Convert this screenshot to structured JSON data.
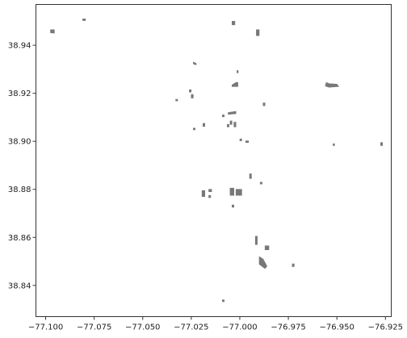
{
  "chart_data": {
    "type": "map",
    "title": "",
    "xlabel": "",
    "ylabel": "",
    "xlim": [
      -77.105,
      -76.922
    ],
    "ylim": [
      38.827,
      38.957
    ],
    "x_ticks": [
      -77.1,
      -77.075,
      -77.05,
      -77.025,
      -77.0,
      -76.975,
      -76.95,
      -76.925
    ],
    "x_tick_labels": [
      "−77.100",
      "−77.075",
      "−77.050",
      "−77.025",
      "−77.000",
      "−76.975",
      "−76.950",
      "−76.925"
    ],
    "y_ticks": [
      38.84,
      38.86,
      38.88,
      38.9,
      38.92,
      38.94
    ],
    "y_tick_labels": [
      "38.84",
      "38.86",
      "38.88",
      "38.90",
      "38.92",
      "38.94"
    ],
    "grid": false,
    "fill_color": "#787878",
    "frame_color": "#333333",
    "polygons": [
      [
        [
          -77.0975,
          38.9465
        ],
        [
          -77.0955,
          38.9465
        ],
        [
          -77.0955,
          38.945
        ],
        [
          -77.0975,
          38.9452
        ]
      ],
      [
        [
          -77.081,
          38.951
        ],
        [
          -77.0795,
          38.951
        ],
        [
          -77.0795,
          38.9502
        ],
        [
          -77.081,
          38.9503
        ]
      ],
      [
        [
          -77.004,
          38.95
        ],
        [
          -77.0025,
          38.95
        ],
        [
          -77.0025,
          38.9485
        ],
        [
          -77.004,
          38.9485
        ]
      ],
      [
        [
          -76.9915,
          38.9465
        ],
        [
          -76.99,
          38.9465
        ],
        [
          -76.99,
          38.944
        ],
        [
          -76.9915,
          38.944
        ]
      ],
      [
        [
          -77.024,
          38.933
        ],
        [
          -77.0225,
          38.9325
        ],
        [
          -77.0225,
          38.9318
        ],
        [
          -77.024,
          38.9323
        ]
      ],
      [
        [
          -77.0015,
          38.9295
        ],
        [
          -77.0008,
          38.9295
        ],
        [
          -77.0008,
          38.9285
        ],
        [
          -77.0015,
          38.9285
        ]
      ],
      [
        [
          -77.004,
          38.9235
        ],
        [
          -77.002,
          38.9245
        ],
        [
          -77.001,
          38.9245
        ],
        [
          -77.001,
          38.9228
        ],
        [
          -77.004,
          38.9228
        ]
      ],
      [
        [
          -77.026,
          38.9215
        ],
        [
          -77.025,
          38.9215
        ],
        [
          -77.025,
          38.9205
        ],
        [
          -77.026,
          38.9205
        ]
      ],
      [
        [
          -77.025,
          38.9195
        ],
        [
          -77.024,
          38.9195
        ],
        [
          -77.024,
          38.918
        ],
        [
          -77.025,
          38.918
        ]
      ],
      [
        [
          -77.033,
          38.9175
        ],
        [
          -77.032,
          38.9175
        ],
        [
          -77.032,
          38.9168
        ],
        [
          -77.033,
          38.9168
        ]
      ],
      [
        [
          -76.988,
          38.916
        ],
        [
          -76.987,
          38.916
        ],
        [
          -76.987,
          38.9148
        ],
        [
          -76.988,
          38.9148
        ]
      ],
      [
        [
          -76.9555,
          38.9245
        ],
        [
          -76.954,
          38.924
        ],
        [
          -76.95,
          38.9238
        ],
        [
          -76.949,
          38.9228
        ],
        [
          -76.954,
          38.9225
        ],
        [
          -76.956,
          38.923
        ]
      ],
      [
        [
          -77.009,
          38.911
        ],
        [
          -77.008,
          38.911
        ],
        [
          -77.008,
          38.9102
        ],
        [
          -77.009,
          38.9102
        ]
      ],
      [
        [
          -77.006,
          38.912
        ],
        [
          -77.002,
          38.9125
        ],
        [
          -77.002,
          38.9115
        ],
        [
          -77.006,
          38.9112
        ]
      ],
      [
        [
          -77.005,
          38.9085
        ],
        [
          -77.004,
          38.9085
        ],
        [
          -77.004,
          38.907
        ],
        [
          -77.005,
          38.907
        ]
      ],
      [
        [
          -77.003,
          38.908
        ],
        [
          -77.002,
          38.908
        ],
        [
          -77.002,
          38.906
        ],
        [
          -77.003,
          38.906
        ]
      ],
      [
        [
          -77.0065,
          38.907
        ],
        [
          -77.0055,
          38.907
        ],
        [
          -77.0055,
          38.906
        ],
        [
          -77.0065,
          38.906
        ]
      ],
      [
        [
          -77.019,
          38.9075
        ],
        [
          -77.018,
          38.9075
        ],
        [
          -77.018,
          38.9062
        ],
        [
          -77.019,
          38.9062
        ]
      ],
      [
        [
          -77.024,
          38.9055
        ],
        [
          -77.023,
          38.9055
        ],
        [
          -77.023,
          38.9048
        ],
        [
          -77.024,
          38.9048
        ]
      ],
      [
        [
          -76.9275,
          38.8995
        ],
        [
          -76.9265,
          38.8995
        ],
        [
          -76.9265,
          38.8982
        ],
        [
          -76.9275,
          38.8982
        ]
      ],
      [
        [
          -76.952,
          38.899
        ],
        [
          -76.9512,
          38.899
        ],
        [
          -76.9512,
          38.8982
        ],
        [
          -76.952,
          38.8982
        ]
      ],
      [
        [
          -77.0,
          38.901
        ],
        [
          -76.999,
          38.901
        ],
        [
          -76.999,
          38.9002
        ],
        [
          -77.0,
          38.9002
        ]
      ],
      [
        [
          -76.997,
          38.9002
        ],
        [
          -76.9955,
          38.9002
        ],
        [
          -76.9955,
          38.8995
        ],
        [
          -76.997,
          38.8995
        ]
      ],
      [
        [
          -76.995,
          38.8865
        ],
        [
          -76.994,
          38.8865
        ],
        [
          -76.994,
          38.8845
        ],
        [
          -76.995,
          38.8845
        ]
      ],
      [
        [
          -77.016,
          38.88
        ],
        [
          -77.0145,
          38.88
        ],
        [
          -77.0145,
          38.879
        ],
        [
          -77.016,
          38.879
        ]
      ],
      [
        [
          -77.005,
          38.8805
        ],
        [
          -77.003,
          38.8805
        ],
        [
          -77.003,
          38.8775
        ],
        [
          -77.005,
          38.8775
        ]
      ],
      [
        [
          -77.002,
          38.88
        ],
        [
          -76.999,
          38.88
        ],
        [
          -76.999,
          38.8775
        ],
        [
          -77.002,
          38.8775
        ]
      ],
      [
        [
          -77.0195,
          38.8795
        ],
        [
          -77.018,
          38.8795
        ],
        [
          -77.018,
          38.877
        ],
        [
          -77.0195,
          38.877
        ]
      ],
      [
        [
          -77.016,
          38.8775
        ],
        [
          -77.015,
          38.8775
        ],
        [
          -77.015,
          38.8765
        ],
        [
          -77.016,
          38.8765
        ]
      ],
      [
        [
          -77.004,
          38.8735
        ],
        [
          -77.003,
          38.8735
        ],
        [
          -77.003,
          38.8725
        ],
        [
          -77.004,
          38.8725
        ]
      ],
      [
        [
          -76.9895,
          38.883
        ],
        [
          -76.9885,
          38.883
        ],
        [
          -76.9885,
          38.8822
        ],
        [
          -76.9895,
          38.8822
        ]
      ],
      [
        [
          -76.992,
          38.8605
        ],
        [
          -76.991,
          38.8605
        ],
        [
          -76.991,
          38.857
        ],
        [
          -76.992,
          38.857
        ]
      ],
      [
        [
          -76.987,
          38.8565
        ],
        [
          -76.985,
          38.8565
        ],
        [
          -76.985,
          38.8548
        ],
        [
          -76.987,
          38.8548
        ]
      ],
      [
        [
          -76.99,
          38.852
        ],
        [
          -76.988,
          38.851
        ],
        [
          -76.986,
          38.848
        ],
        [
          -76.987,
          38.847
        ],
        [
          -76.99,
          38.8488
        ]
      ],
      [
        [
          -76.973,
          38.849
        ],
        [
          -76.972,
          38.849
        ],
        [
          -76.972,
          38.8478
        ],
        [
          -76.973,
          38.8478
        ]
      ],
      [
        [
          -77.009,
          38.834
        ],
        [
          -77.008,
          38.834
        ],
        [
          -77.008,
          38.8332
        ],
        [
          -77.009,
          38.8332
        ]
      ]
    ]
  }
}
